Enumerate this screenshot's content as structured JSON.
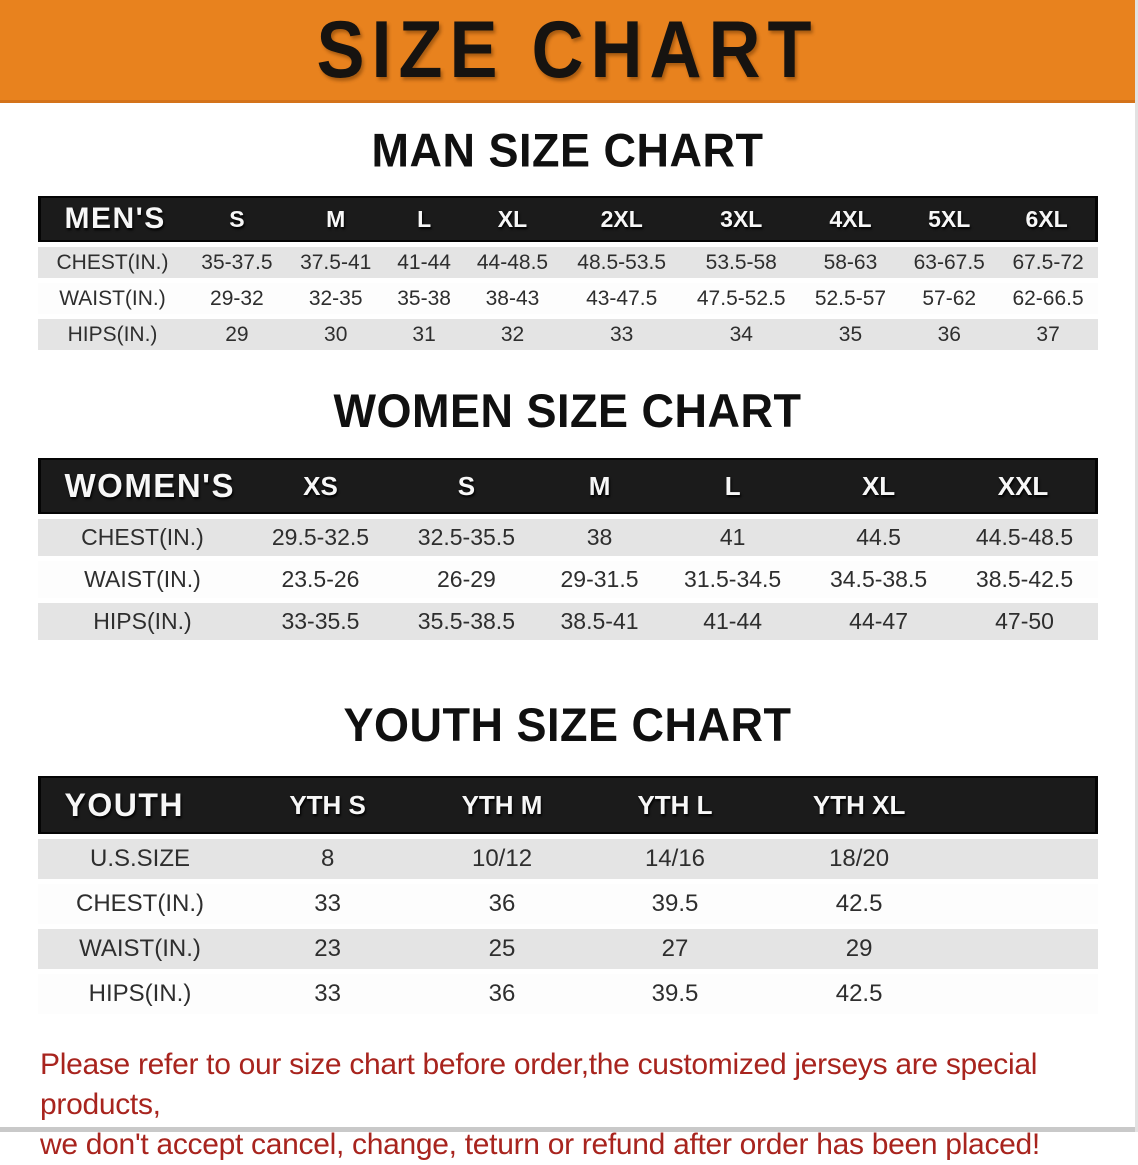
{
  "banner": {
    "title": "SIZE CHART",
    "bg_color": "#E8821E",
    "text_color": "#161310"
  },
  "men": {
    "heading": "MAN SIZE CHART",
    "header_label": "MEN'S",
    "sizes": [
      "S",
      "M",
      "L",
      "XL",
      "2XL",
      "3XL",
      "4XL",
      "5XL",
      "6XL"
    ],
    "rows": [
      {
        "label": "CHEST(IN.)",
        "values": [
          "35-37.5",
          "37.5-41",
          "41-44",
          "44-48.5",
          "48.5-53.5",
          "53.5-58",
          "58-63",
          "63-67.5",
          "67.5-72"
        ]
      },
      {
        "label": "WAIST(IN.)",
        "values": [
          "29-32",
          "32-35",
          "35-38",
          "38-43",
          "43-47.5",
          "47.5-52.5",
          "52.5-57",
          "57-62",
          "62-66.5"
        ]
      },
      {
        "label": "HIPS(IN.)",
        "values": [
          "29",
          "30",
          "31",
          "32",
          "33",
          "34",
          "35",
          "36",
          "37"
        ]
      }
    ]
  },
  "women": {
    "heading": "WOMEN SIZE CHART",
    "header_label": "WOMEN'S",
    "sizes": [
      "XS",
      "S",
      "M",
      "L",
      "XL",
      "XXL"
    ],
    "rows": [
      {
        "label": "CHEST(IN.)",
        "values": [
          "29.5-32.5",
          "32.5-35.5",
          "38",
          "41",
          "44.5",
          "44.5-48.5"
        ]
      },
      {
        "label": "WAIST(IN.)",
        "values": [
          "23.5-26",
          "26-29",
          "29-31.5",
          "31.5-34.5",
          "34.5-38.5",
          "38.5-42.5"
        ]
      },
      {
        "label": "HIPS(IN.)",
        "values": [
          "33-35.5",
          "35.5-38.5",
          "38.5-41",
          "41-44",
          "44-47",
          "47-50"
        ]
      }
    ]
  },
  "youth": {
    "heading": "YOUTH SIZE CHART",
    "header_label": "YOUTH",
    "sizes": [
      "YTH S",
      "YTH M",
      "YTH L",
      "YTH XL"
    ],
    "rows": [
      {
        "label": "U.S.SIZE",
        "values": [
          "8",
          "10/12",
          "14/16",
          "18/20"
        ]
      },
      {
        "label": "CHEST(IN.)",
        "values": [
          "33",
          "36",
          "39.5",
          "42.5"
        ]
      },
      {
        "label": "WAIST(IN.)",
        "values": [
          "23",
          "25",
          "27",
          "29"
        ]
      },
      {
        "label": "HIPS(IN.)",
        "values": [
          "33",
          "36",
          "39.5",
          "42.5"
        ]
      }
    ]
  },
  "note": {
    "line1": "Please refer to our size chart before order,the customized jerseys are special products,",
    "line2": "we don't accept cancel, change, teturn or refund after order has been placed!",
    "text_color": "#A8241E"
  }
}
